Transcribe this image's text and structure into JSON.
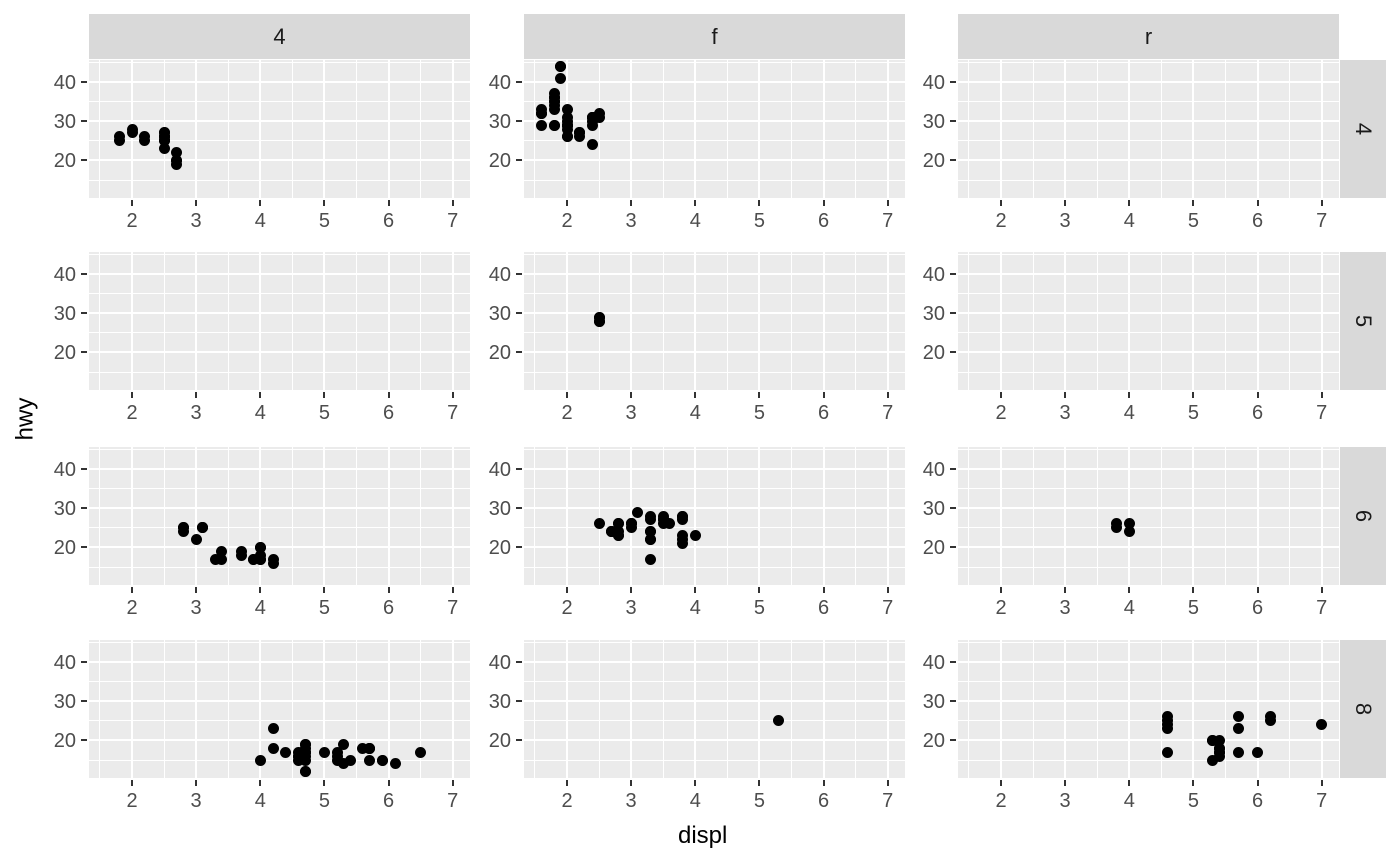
{
  "figure": {
    "xlabel": "displ",
    "ylabel": "hwy"
  },
  "style": {
    "panel_bg": "#EBEBEB",
    "strip_bg": "#D9D9D9",
    "grid_color": "#FFFFFF",
    "point_color": "#000000",
    "tick_mark_color": "#333333",
    "tick_text_color": "#4D4D4D",
    "strip_text_color": "#1A1A1A",
    "axis_title_color": "#000000"
  },
  "chart_data": {
    "type": "scatter",
    "title": "",
    "xlabel": "displ",
    "ylabel": "hwy",
    "facet_col_variable_levels": [
      "4",
      "f",
      "r"
    ],
    "facet_row_variable_levels": [
      "4",
      "5",
      "6",
      "8"
    ],
    "x_ticks": [
      2,
      3,
      4,
      5,
      6,
      7
    ],
    "y_ticks": [
      20,
      30,
      40
    ],
    "x_minor_ticks": [
      1.5,
      2.5,
      3.5,
      4.5,
      5.5,
      6.5
    ],
    "y_minor_ticks": [
      15,
      25,
      35,
      45
    ],
    "xlim": [
      1.33,
      7.27
    ],
    "ylim": [
      10.4,
      45.6
    ],
    "grid": true,
    "legend": false,
    "panels": [
      {
        "col": "4",
        "row": "4",
        "points": [
          [
            1.8,
            26
          ],
          [
            1.8,
            25
          ],
          [
            2.0,
            28
          ],
          [
            2.0,
            27
          ],
          [
            2.2,
            26
          ],
          [
            2.2,
            25
          ],
          [
            2.5,
            25
          ],
          [
            2.5,
            25
          ],
          [
            2.5,
            27
          ],
          [
            2.5,
            26
          ],
          [
            2.5,
            26
          ],
          [
            2.5,
            25
          ],
          [
            2.5,
            27
          ],
          [
            2.5,
            25
          ],
          [
            2.5,
            26
          ],
          [
            2.5,
            23
          ],
          [
            2.7,
            22
          ],
          [
            2.7,
            20
          ],
          [
            2.7,
            20
          ],
          [
            2.7,
            19
          ]
        ]
      },
      {
        "col": "f",
        "row": "4",
        "points": [
          [
            1.6,
            33
          ],
          [
            1.6,
            32
          ],
          [
            1.6,
            32
          ],
          [
            1.6,
            29
          ],
          [
            1.6,
            32
          ],
          [
            1.8,
            34
          ],
          [
            1.8,
            36
          ],
          [
            1.8,
            36
          ],
          [
            1.8,
            29
          ],
          [
            1.8,
            29
          ],
          [
            1.8,
            33
          ],
          [
            1.8,
            35
          ],
          [
            1.8,
            35
          ],
          [
            1.8,
            37
          ],
          [
            1.9,
            44
          ],
          [
            1.9,
            44
          ],
          [
            1.9,
            41
          ],
          [
            2.0,
            33
          ],
          [
            2.0,
            31
          ],
          [
            2.0,
            30
          ],
          [
            2.0,
            29
          ],
          [
            2.0,
            29
          ],
          [
            2.0,
            29
          ],
          [
            2.0,
            28
          ],
          [
            2.0,
            29
          ],
          [
            2.0,
            26
          ],
          [
            2.0,
            26
          ],
          [
            2.2,
            27
          ],
          [
            2.2,
            27
          ],
          [
            2.2,
            26
          ],
          [
            2.2,
            27
          ],
          [
            2.4,
            30
          ],
          [
            2.4,
            31
          ],
          [
            2.4,
            31
          ],
          [
            2.4,
            31
          ],
          [
            2.4,
            31
          ],
          [
            2.4,
            31
          ],
          [
            2.4,
            29
          ],
          [
            2.4,
            24
          ],
          [
            2.5,
            31
          ],
          [
            2.5,
            32
          ]
        ]
      },
      {
        "col": "r",
        "row": "4",
        "points": []
      },
      {
        "col": "4",
        "row": "5",
        "points": []
      },
      {
        "col": "f",
        "row": "5",
        "points": [
          [
            2.5,
            28
          ],
          [
            2.5,
            29
          ],
          [
            2.5,
            29
          ],
          [
            2.5,
            28
          ]
        ]
      },
      {
        "col": "r",
        "row": "5",
        "points": []
      },
      {
        "col": "4",
        "row": "6",
        "points": [
          [
            2.8,
            25
          ],
          [
            2.8,
            25
          ],
          [
            2.8,
            24
          ],
          [
            3.0,
            22
          ],
          [
            3.1,
            25
          ],
          [
            3.1,
            25
          ],
          [
            3.1,
            25
          ],
          [
            3.3,
            17
          ],
          [
            3.4,
            19
          ],
          [
            3.4,
            17
          ],
          [
            3.7,
            19
          ],
          [
            3.7,
            18
          ],
          [
            3.9,
            17
          ],
          [
            3.9,
            17
          ],
          [
            4.0,
            20
          ],
          [
            4.0,
            20
          ],
          [
            4.0,
            18
          ],
          [
            4.0,
            17
          ],
          [
            4.0,
            17
          ],
          [
            4.2,
            17
          ],
          [
            4.2,
            16
          ]
        ]
      },
      {
        "col": "f",
        "row": "6",
        "points": [
          [
            2.5,
            26
          ],
          [
            2.7,
            24
          ],
          [
            2.7,
            24
          ],
          [
            2.7,
            24
          ],
          [
            2.8,
            23
          ],
          [
            2.8,
            23
          ],
          [
            2.8,
            24
          ],
          [
            2.8,
            26
          ],
          [
            2.8,
            26
          ],
          [
            3.0,
            26
          ],
          [
            3.0,
            25
          ],
          [
            3.0,
            26
          ],
          [
            3.0,
            26
          ],
          [
            3.1,
            29
          ],
          [
            3.3,
            28
          ],
          [
            3.3,
            27
          ],
          [
            3.3,
            24
          ],
          [
            3.3,
            24
          ],
          [
            3.3,
            22
          ],
          [
            3.3,
            22
          ],
          [
            3.3,
            17
          ],
          [
            3.5,
            28
          ],
          [
            3.5,
            27
          ],
          [
            3.5,
            26
          ],
          [
            3.5,
            27
          ],
          [
            3.6,
            26
          ],
          [
            3.8,
            28
          ],
          [
            3.8,
            28
          ],
          [
            3.8,
            27
          ],
          [
            3.8,
            23
          ],
          [
            3.8,
            22
          ],
          [
            3.8,
            21
          ],
          [
            4.0,
            23
          ]
        ]
      },
      {
        "col": "r",
        "row": "6",
        "points": [
          [
            3.8,
            26
          ],
          [
            3.8,
            25
          ],
          [
            4.0,
            26
          ],
          [
            4.0,
            24
          ]
        ]
      },
      {
        "col": "4",
        "row": "8",
        "points": [
          [
            4.0,
            15
          ],
          [
            4.2,
            23
          ],
          [
            4.2,
            18
          ],
          [
            4.4,
            17
          ],
          [
            4.6,
            16
          ],
          [
            4.6,
            15
          ],
          [
            4.6,
            17
          ],
          [
            4.6,
            16
          ],
          [
            4.7,
            19
          ],
          [
            4.7,
            19
          ],
          [
            4.7,
            17
          ],
          [
            4.7,
            17
          ],
          [
            4.7,
            18
          ],
          [
            4.7,
            17
          ],
          [
            4.7,
            16
          ],
          [
            4.7,
            15
          ],
          [
            4.7,
            12
          ],
          [
            4.7,
            12
          ],
          [
            5.0,
            17
          ],
          [
            5.2,
            15
          ],
          [
            5.2,
            17
          ],
          [
            5.2,
            16
          ],
          [
            5.3,
            14
          ],
          [
            5.3,
            19
          ],
          [
            5.4,
            15
          ],
          [
            5.6,
            18
          ],
          [
            5.7,
            18
          ],
          [
            5.7,
            15
          ],
          [
            5.7,
            18
          ],
          [
            5.7,
            18
          ],
          [
            5.9,
            15
          ],
          [
            5.9,
            15
          ],
          [
            6.1,
            14
          ],
          [
            6.5,
            17
          ]
        ]
      },
      {
        "col": "f",
        "row": "8",
        "points": [
          [
            5.3,
            25
          ]
        ]
      },
      {
        "col": "r",
        "row": "8",
        "points": [
          [
            4.6,
            24
          ],
          [
            4.6,
            25
          ],
          [
            4.6,
            26
          ],
          [
            4.6,
            23
          ],
          [
            4.6,
            17
          ],
          [
            5.3,
            20
          ],
          [
            5.3,
            15
          ],
          [
            5.3,
            20
          ],
          [
            5.4,
            17
          ],
          [
            5.4,
            18
          ],
          [
            5.4,
            17
          ],
          [
            5.4,
            16
          ],
          [
            5.4,
            18
          ],
          [
            5.4,
            20
          ],
          [
            5.7,
            17
          ],
          [
            5.7,
            26
          ],
          [
            5.7,
            23
          ],
          [
            6.0,
            17
          ],
          [
            6.2,
            26
          ],
          [
            6.2,
            25
          ],
          [
            7.0,
            24
          ]
        ]
      }
    ]
  }
}
